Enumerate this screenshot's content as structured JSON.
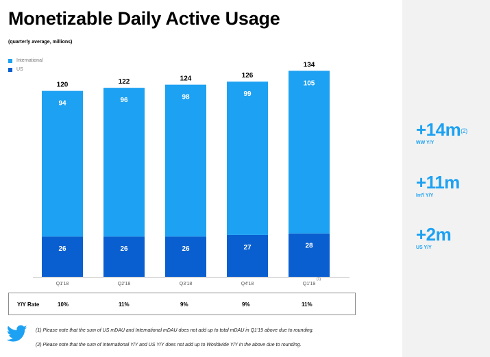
{
  "title": "Monetizable Daily Active Usage",
  "subtitle": "(quarterly average, millions)",
  "colors": {
    "international": "#1da1f2",
    "us": "#0a5fd0",
    "accent": "#1da1f2"
  },
  "chart_data": {
    "type": "bar",
    "stacked": true,
    "categories": [
      "Q1'18",
      "Q2'18",
      "Q3'18",
      "Q4'18",
      "Q1'19"
    ],
    "footnote_marks": [
      "",
      "",
      "",
      "",
      "(1)"
    ],
    "series": [
      {
        "name": "US",
        "values": [
          26,
          26,
          26,
          27,
          28
        ]
      },
      {
        "name": "International",
        "values": [
          94,
          96,
          98,
          99,
          105
        ]
      }
    ],
    "totals": [
      120,
      122,
      124,
      126,
      134
    ],
    "legend": [
      "International",
      "US"
    ],
    "legend_position": "top-left",
    "ylim": [
      0,
      134
    ],
    "grid": false
  },
  "yoy": {
    "label": "Y/Y Rate",
    "values": [
      "10%",
      "11%",
      "9%",
      "9%",
      "11%"
    ]
  },
  "stats": [
    {
      "value": "+14m",
      "sup": "(2)",
      "label": "WW Y/Y"
    },
    {
      "value": "+11m",
      "sup": "",
      "label": "Int'l Y/Y"
    },
    {
      "value": "+2m",
      "sup": "",
      "label": "US Y/Y"
    }
  ],
  "notes": {
    "note1": "(1) Please note that the sum of US mDAU and International mDAU does not add up to total mDAU in Q1'19 above due to rounding.",
    "note2": "(2) Please note that the sum of International Y/Y and US Y/Y does not add up to Worldwide Y/Y in the above due to rounding."
  },
  "icons": {
    "brand": "twitter-bird-icon"
  }
}
